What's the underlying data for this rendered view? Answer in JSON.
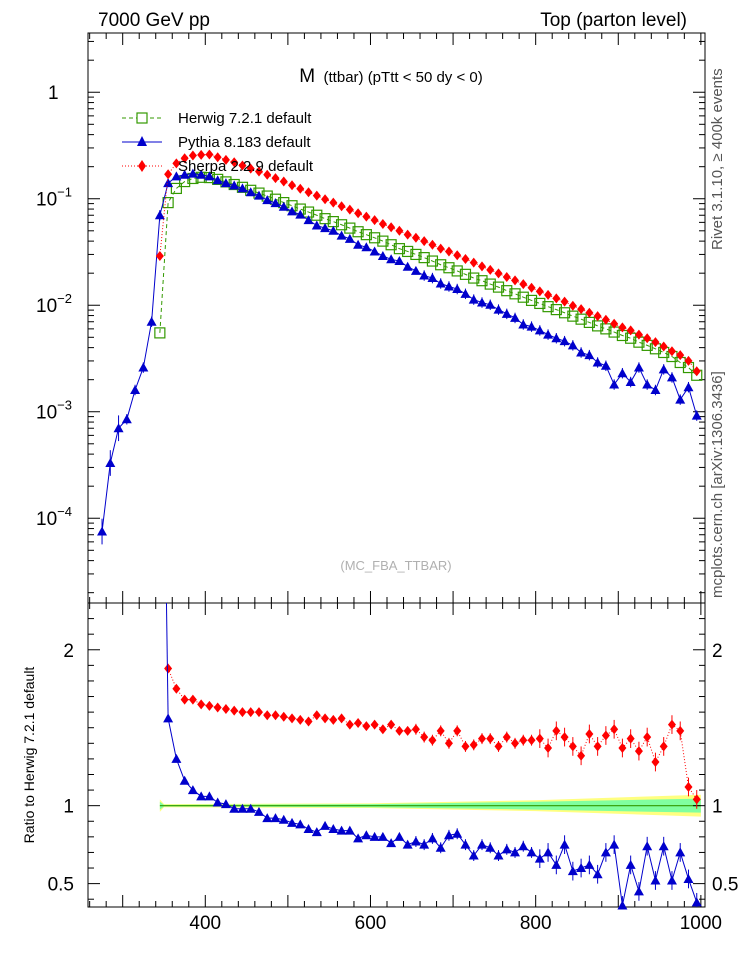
{
  "header": {
    "left": "7000 GeV pp",
    "right": "Top (parton level)"
  },
  "side": {
    "rivet": "Rivet 3.1.10, ≥ 400k events",
    "source": "mcplots.cern.ch [arXiv:1306.3436]"
  },
  "chart_data": {
    "type": "line",
    "title_main": "M",
    "title_sub": "(ttbar) (pTtt < 50 dy < 0)",
    "watermark": "(MC_FBA_TTBAR)",
    "xlim": [
      258,
      1005
    ],
    "x_ticks": [
      400,
      600,
      800,
      1000
    ],
    "top": {
      "yscale": "log",
      "ylim": [
        1.6e-05,
        3.6
      ],
      "y_ticks": [
        {
          "v": 0.0001,
          "base": "10",
          "exp": "−4"
        },
        {
          "v": 0.001,
          "base": "10",
          "exp": "−3"
        },
        {
          "v": 0.01,
          "base": "10",
          "exp": "−2"
        },
        {
          "v": 0.1,
          "base": "10",
          "exp": "−1"
        },
        {
          "v": 1,
          "base": "1",
          "exp": ""
        }
      ]
    },
    "ratio": {
      "ylabel": "Ratio to Herwig 7.2.1 default",
      "ylim": [
        0.35,
        2.3
      ],
      "y_ticks": [
        "0.5",
        "1",
        "2"
      ],
      "band": {
        "x": [
          345,
          350,
          600,
          800,
          1000
        ],
        "yellow_lo": [
          0.96,
          0.99,
          0.985,
          0.965,
          0.93
        ],
        "yellow_hi": [
          1.04,
          1.01,
          1.015,
          1.035,
          1.07
        ],
        "green_lo": [
          0.975,
          0.995,
          0.99,
          0.975,
          0.955
        ],
        "green_hi": [
          1.025,
          1.005,
          1.01,
          1.025,
          1.045
        ]
      }
    },
    "series": [
      {
        "name": "Herwig 7.2.1 default",
        "color": "#339900",
        "marker": "open-square",
        "line": "dashed",
        "x": [
          345,
          355,
          365,
          375,
          385,
          395,
          405,
          415,
          425,
          435,
          445,
          455,
          465,
          475,
          485,
          495,
          505,
          515,
          525,
          535,
          545,
          555,
          565,
          575,
          585,
          595,
          605,
          615,
          625,
          635,
          645,
          655,
          665,
          675,
          685,
          695,
          705,
          715,
          725,
          735,
          745,
          755,
          765,
          775,
          785,
          795,
          805,
          815,
          825,
          835,
          845,
          855,
          865,
          875,
          885,
          895,
          905,
          915,
          925,
          935,
          945,
          955,
          965,
          975,
          985,
          995
        ],
        "y": [
          0.0055,
          0.092,
          0.125,
          0.145,
          0.155,
          0.159,
          0.158,
          0.152,
          0.144,
          0.136,
          0.128,
          0.12,
          0.113,
          0.106,
          0.099,
          0.092,
          0.086,
          0.08,
          0.075,
          0.07,
          0.065,
          0.061,
          0.057,
          0.053,
          0.049,
          0.046,
          0.043,
          0.04,
          0.037,
          0.034,
          0.032,
          0.03,
          0.028,
          0.026,
          0.024,
          0.0225,
          0.021,
          0.0195,
          0.018,
          0.017,
          0.0158,
          0.0148,
          0.0137,
          0.0128,
          0.0119,
          0.0111,
          0.0104,
          0.0097,
          0.0091,
          0.0085,
          0.0079,
          0.0074,
          0.0069,
          0.0064,
          0.006,
          0.0056,
          0.0052,
          0.0049,
          0.0045,
          0.0042,
          0.0039,
          0.0036,
          0.0033,
          0.0029,
          0.0026,
          0.0022
        ]
      },
      {
        "name": "Pythia 8.183 default",
        "color": "#0000cc",
        "marker": "triangle",
        "line": "solid",
        "x": [
          275,
          285,
          295,
          305,
          315,
          325,
          335,
          345,
          355,
          365,
          375,
          385,
          395,
          405,
          415,
          425,
          435,
          445,
          455,
          465,
          475,
          485,
          495,
          505,
          515,
          525,
          535,
          545,
          555,
          565,
          575,
          585,
          595,
          605,
          615,
          625,
          635,
          645,
          655,
          665,
          675,
          685,
          695,
          705,
          715,
          725,
          735,
          745,
          755,
          765,
          775,
          785,
          795,
          805,
          815,
          825,
          835,
          845,
          855,
          865,
          875,
          885,
          895,
          905,
          915,
          925,
          935,
          945,
          955,
          965,
          975,
          985,
          995
        ],
        "y": [
          7.5e-05,
          0.00033,
          0.0007,
          0.00085,
          0.0016,
          0.0026,
          0.007,
          0.07,
          0.14,
          0.162,
          0.168,
          0.172,
          0.168,
          0.162,
          0.149,
          0.14,
          0.133,
          0.125,
          0.115,
          0.107,
          0.097,
          0.091,
          0.084,
          0.076,
          0.071,
          0.063,
          0.056,
          0.053,
          0.05,
          0.045,
          0.042,
          0.037,
          0.035,
          0.032,
          0.029,
          0.027,
          0.026,
          0.023,
          0.021,
          0.019,
          0.018,
          0.016,
          0.015,
          0.0142,
          0.0128,
          0.0113,
          0.0106,
          0.0101,
          0.0091,
          0.0083,
          0.0076,
          0.0066,
          0.0063,
          0.0058,
          0.0053,
          0.0049,
          0.0046,
          0.0042,
          0.0036,
          0.0034,
          0.0029,
          0.0027,
          0.0018,
          0.0023,
          0.0019,
          0.0026,
          0.0018,
          0.0016,
          0.0025,
          0.0021,
          0.0013,
          0.0017,
          0.00092
        ]
      },
      {
        "name": "Sherpa 2.2.9 default",
        "color": "#ff0000",
        "marker": "diamond",
        "line": "dotted",
        "x": [
          345,
          355,
          365,
          375,
          385,
          395,
          405,
          415,
          425,
          435,
          445,
          455,
          465,
          475,
          485,
          495,
          505,
          515,
          525,
          535,
          545,
          555,
          565,
          575,
          585,
          595,
          605,
          615,
          625,
          635,
          645,
          655,
          665,
          675,
          685,
          695,
          705,
          715,
          725,
          735,
          745,
          755,
          765,
          775,
          785,
          795,
          805,
          815,
          825,
          835,
          845,
          855,
          865,
          875,
          885,
          895,
          905,
          915,
          925,
          935,
          945,
          955,
          965,
          975,
          985,
          995
        ],
        "y": [
          0.029,
          0.17,
          0.215,
          0.24,
          0.255,
          0.258,
          0.26,
          0.245,
          0.232,
          0.22,
          0.205,
          0.192,
          0.18,
          0.168,
          0.156,
          0.145,
          0.134,
          0.124,
          0.115,
          0.107,
          0.099,
          0.092,
          0.085,
          0.079,
          0.073,
          0.068,
          0.063,
          0.058,
          0.054,
          0.05,
          0.046,
          0.043,
          0.04,
          0.037,
          0.034,
          0.032,
          0.0295,
          0.0272,
          0.0251,
          0.0232,
          0.0215,
          0.0199,
          0.0184,
          0.0171,
          0.0158,
          0.0146,
          0.0135,
          0.0125,
          0.0116,
          0.0108,
          0.0099,
          0.0092,
          0.0085,
          0.0079,
          0.0073,
          0.0067,
          0.0062,
          0.0058,
          0.0053,
          0.0049,
          0.0045,
          0.0041,
          0.0037,
          0.0034,
          0.003,
          0.0024
        ]
      }
    ],
    "ratio_series": [
      {
        "name": "Sherpa / Herwig",
        "color": "#ff0000",
        "marker": "diamond",
        "line": "dotted",
        "x": [
          355,
          365,
          375,
          385,
          395,
          405,
          415,
          425,
          435,
          445,
          455,
          465,
          475,
          485,
          495,
          505,
          515,
          525,
          535,
          545,
          555,
          565,
          575,
          585,
          595,
          605,
          615,
          625,
          635,
          645,
          655,
          665,
          675,
          685,
          695,
          705,
          715,
          725,
          735,
          745,
          755,
          765,
          775,
          785,
          795,
          805,
          815,
          825,
          835,
          845,
          855,
          865,
          875,
          885,
          895,
          905,
          915,
          925,
          935,
          945,
          955,
          965,
          975,
          985,
          995
        ],
        "y": [
          1.88,
          1.75,
          1.68,
          1.68,
          1.65,
          1.64,
          1.63,
          1.62,
          1.61,
          1.6,
          1.6,
          1.6,
          1.58,
          1.58,
          1.57,
          1.56,
          1.55,
          1.54,
          1.58,
          1.56,
          1.55,
          1.56,
          1.52,
          1.53,
          1.51,
          1.52,
          1.49,
          1.52,
          1.48,
          1.48,
          1.49,
          1.44,
          1.42,
          1.48,
          1.4,
          1.48,
          1.38,
          1.39,
          1.43,
          1.43,
          1.38,
          1.44,
          1.4,
          1.42,
          1.42,
          1.43,
          1.37,
          1.48,
          1.44,
          1.38,
          1.32,
          1.46,
          1.38,
          1.45,
          1.49,
          1.37,
          1.43,
          1.35,
          1.44,
          1.28,
          1.38,
          1.52,
          1.48,
          1.12,
          1.04
        ]
      },
      {
        "name": "Pythia / Herwig",
        "color": "#0000cc",
        "marker": "triangle",
        "line": "solid",
        "x": [
          355,
          365,
          375,
          385,
          395,
          405,
          415,
          425,
          435,
          445,
          455,
          465,
          475,
          485,
          495,
          505,
          515,
          525,
          535,
          545,
          555,
          565,
          575,
          585,
          595,
          605,
          615,
          625,
          635,
          645,
          655,
          665,
          675,
          685,
          695,
          705,
          715,
          725,
          735,
          745,
          755,
          765,
          775,
          785,
          795,
          805,
          815,
          825,
          835,
          845,
          855,
          865,
          875,
          885,
          895,
          905,
          915,
          925,
          935,
          945,
          955,
          965,
          975,
          985,
          995
        ],
        "y": [
          1.56,
          1.3,
          1.16,
          1.1,
          1.06,
          1.06,
          1.02,
          1.01,
          0.98,
          0.98,
          0.98,
          0.96,
          0.92,
          0.92,
          0.91,
          0.89,
          0.88,
          0.85,
          0.83,
          0.87,
          0.85,
          0.84,
          0.84,
          0.79,
          0.81,
          0.8,
          0.8,
          0.76,
          0.8,
          0.75,
          0.77,
          0.75,
          0.79,
          0.73,
          0.81,
          0.82,
          0.75,
          0.68,
          0.75,
          0.73,
          0.68,
          0.72,
          0.7,
          0.74,
          0.7,
          0.66,
          0.7,
          0.62,
          0.75,
          0.58,
          0.6,
          0.62,
          0.56,
          0.7,
          0.75,
          0.36,
          0.62,
          0.45,
          0.74,
          0.52,
          0.74,
          0.52,
          0.7,
          0.53,
          0.38
        ]
      }
    ]
  }
}
